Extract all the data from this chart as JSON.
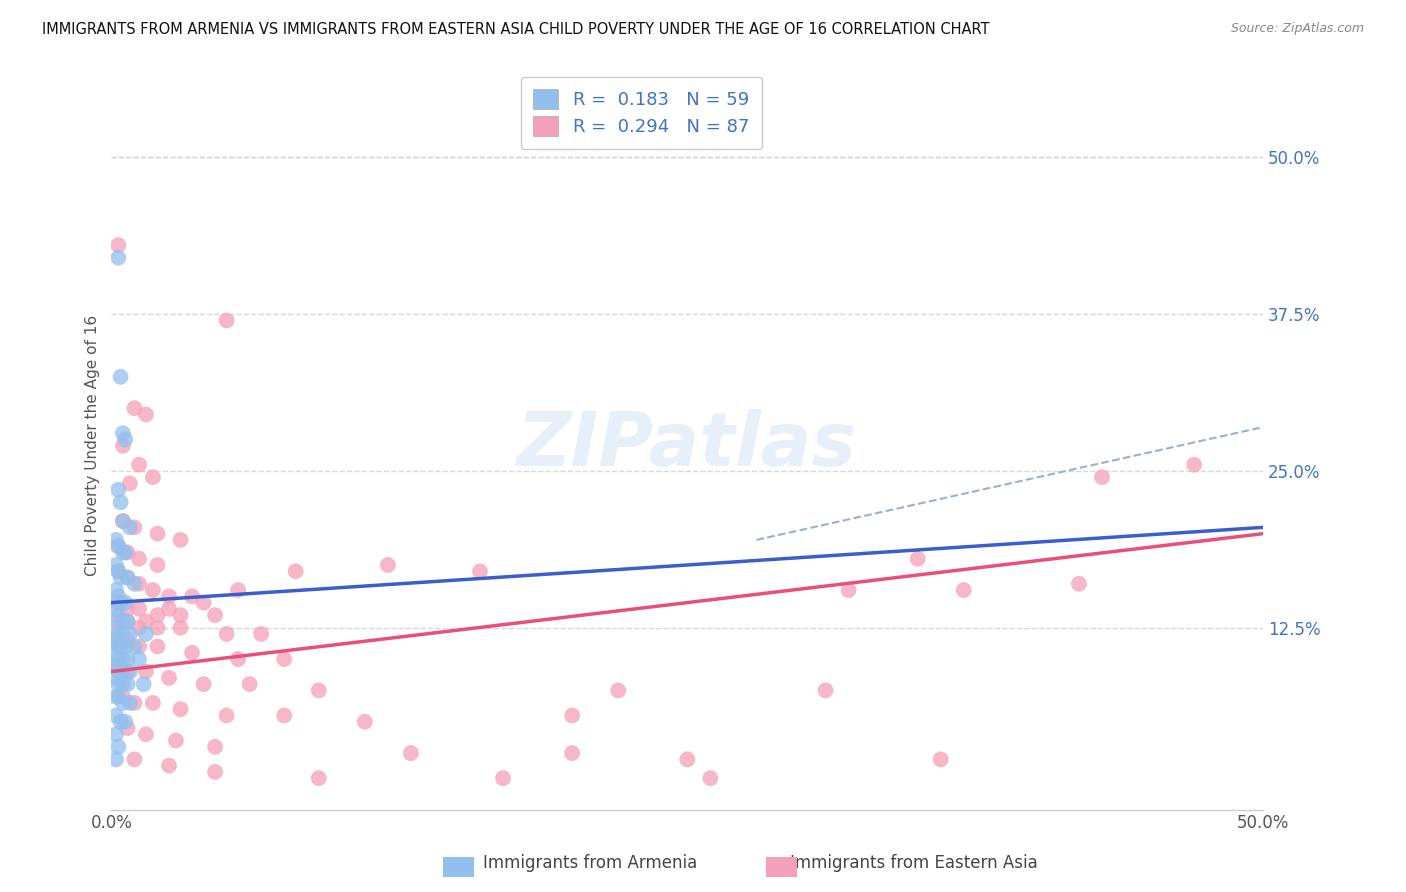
{
  "title": "IMMIGRANTS FROM ARMENIA VS IMMIGRANTS FROM EASTERN ASIA CHILD POVERTY UNDER THE AGE OF 16 CORRELATION CHART",
  "source": "Source: ZipAtlas.com",
  "ylabel": "Child Poverty Under the Age of 16",
  "xlim": [
    0.0,
    0.5
  ],
  "ylim": [
    -0.02,
    0.56
  ],
  "yticks": [
    0.125,
    0.25,
    0.375,
    0.5
  ],
  "ytick_labels": [
    "12.5%",
    "25.0%",
    "37.5%",
    "50.0%"
  ],
  "armenia_color": "#92bfed",
  "eastern_asia_color": "#f4a0b8",
  "armenia_line_color": "#3a5fcd",
  "eastern_asia_line_color": "#e8507a",
  "dash_line_color": "#9ab0d0",
  "background_color": "#ffffff",
  "grid_color": "#d8d8d8",
  "armenia_scatter": [
    [
      0.003,
      0.42
    ],
    [
      0.004,
      0.325
    ],
    [
      0.005,
      0.28
    ],
    [
      0.006,
      0.275
    ],
    [
      0.003,
      0.235
    ],
    [
      0.004,
      0.225
    ],
    [
      0.005,
      0.21
    ],
    [
      0.008,
      0.205
    ],
    [
      0.002,
      0.195
    ],
    [
      0.003,
      0.19
    ],
    [
      0.005,
      0.185
    ],
    [
      0.006,
      0.185
    ],
    [
      0.002,
      0.175
    ],
    [
      0.003,
      0.17
    ],
    [
      0.004,
      0.165
    ],
    [
      0.007,
      0.165
    ],
    [
      0.01,
      0.16
    ],
    [
      0.002,
      0.155
    ],
    [
      0.003,
      0.15
    ],
    [
      0.004,
      0.145
    ],
    [
      0.006,
      0.145
    ],
    [
      0.002,
      0.14
    ],
    [
      0.003,
      0.135
    ],
    [
      0.005,
      0.13
    ],
    [
      0.007,
      0.13
    ],
    [
      0.002,
      0.125
    ],
    [
      0.003,
      0.12
    ],
    [
      0.005,
      0.12
    ],
    [
      0.008,
      0.12
    ],
    [
      0.015,
      0.12
    ],
    [
      0.002,
      0.115
    ],
    [
      0.003,
      0.11
    ],
    [
      0.004,
      0.11
    ],
    [
      0.006,
      0.11
    ],
    [
      0.01,
      0.11
    ],
    [
      0.002,
      0.105
    ],
    [
      0.003,
      0.1
    ],
    [
      0.005,
      0.1
    ],
    [
      0.007,
      0.1
    ],
    [
      0.012,
      0.1
    ],
    [
      0.002,
      0.095
    ],
    [
      0.003,
      0.09
    ],
    [
      0.005,
      0.09
    ],
    [
      0.008,
      0.09
    ],
    [
      0.002,
      0.085
    ],
    [
      0.003,
      0.08
    ],
    [
      0.005,
      0.08
    ],
    [
      0.007,
      0.08
    ],
    [
      0.014,
      0.08
    ],
    [
      0.002,
      0.07
    ],
    [
      0.003,
      0.07
    ],
    [
      0.005,
      0.065
    ],
    [
      0.008,
      0.065
    ],
    [
      0.002,
      0.055
    ],
    [
      0.004,
      0.05
    ],
    [
      0.006,
      0.05
    ],
    [
      0.002,
      0.04
    ],
    [
      0.003,
      0.03
    ],
    [
      0.002,
      0.02
    ]
  ],
  "eastern_asia_scatter": [
    [
      0.003,
      0.43
    ],
    [
      0.05,
      0.37
    ],
    [
      0.01,
      0.3
    ],
    [
      0.015,
      0.295
    ],
    [
      0.005,
      0.27
    ],
    [
      0.012,
      0.255
    ],
    [
      0.018,
      0.245
    ],
    [
      0.008,
      0.24
    ],
    [
      0.005,
      0.21
    ],
    [
      0.01,
      0.205
    ],
    [
      0.02,
      0.2
    ],
    [
      0.03,
      0.195
    ],
    [
      0.003,
      0.19
    ],
    [
      0.007,
      0.185
    ],
    [
      0.012,
      0.18
    ],
    [
      0.02,
      0.175
    ],
    [
      0.003,
      0.17
    ],
    [
      0.007,
      0.165
    ],
    [
      0.012,
      0.16
    ],
    [
      0.018,
      0.155
    ],
    [
      0.025,
      0.15
    ],
    [
      0.035,
      0.15
    ],
    [
      0.003,
      0.145
    ],
    [
      0.007,
      0.14
    ],
    [
      0.012,
      0.14
    ],
    [
      0.02,
      0.135
    ],
    [
      0.03,
      0.135
    ],
    [
      0.045,
      0.135
    ],
    [
      0.003,
      0.13
    ],
    [
      0.007,
      0.13
    ],
    [
      0.012,
      0.125
    ],
    [
      0.02,
      0.125
    ],
    [
      0.03,
      0.125
    ],
    [
      0.05,
      0.12
    ],
    [
      0.065,
      0.12
    ],
    [
      0.003,
      0.115
    ],
    [
      0.007,
      0.115
    ],
    [
      0.012,
      0.11
    ],
    [
      0.02,
      0.11
    ],
    [
      0.035,
      0.105
    ],
    [
      0.055,
      0.1
    ],
    [
      0.075,
      0.1
    ],
    [
      0.003,
      0.095
    ],
    [
      0.007,
      0.09
    ],
    [
      0.015,
      0.09
    ],
    [
      0.025,
      0.085
    ],
    [
      0.04,
      0.08
    ],
    [
      0.06,
      0.08
    ],
    [
      0.09,
      0.075
    ],
    [
      0.005,
      0.07
    ],
    [
      0.01,
      0.065
    ],
    [
      0.018,
      0.065
    ],
    [
      0.03,
      0.06
    ],
    [
      0.05,
      0.055
    ],
    [
      0.075,
      0.055
    ],
    [
      0.11,
      0.05
    ],
    [
      0.007,
      0.045
    ],
    [
      0.015,
      0.04
    ],
    [
      0.028,
      0.035
    ],
    [
      0.045,
      0.03
    ],
    [
      0.13,
      0.025
    ],
    [
      0.2,
      0.025
    ],
    [
      0.01,
      0.02
    ],
    [
      0.025,
      0.015
    ],
    [
      0.045,
      0.01
    ],
    [
      0.09,
      0.005
    ],
    [
      0.17,
      0.005
    ],
    [
      0.26,
      0.005
    ],
    [
      0.22,
      0.075
    ],
    [
      0.31,
      0.075
    ],
    [
      0.25,
      0.02
    ],
    [
      0.32,
      0.155
    ],
    [
      0.37,
      0.155
    ],
    [
      0.36,
      0.02
    ],
    [
      0.42,
      0.16
    ],
    [
      0.47,
      0.255
    ],
    [
      0.16,
      0.17
    ],
    [
      0.12,
      0.175
    ],
    [
      0.08,
      0.17
    ],
    [
      0.055,
      0.155
    ],
    [
      0.04,
      0.145
    ],
    [
      0.025,
      0.14
    ],
    [
      0.015,
      0.13
    ],
    [
      0.2,
      0.055
    ],
    [
      0.43,
      0.245
    ],
    [
      0.35,
      0.18
    ]
  ],
  "armenia_line": [
    0.0,
    0.5,
    0.145,
    0.205
  ],
  "eastern_asia_line": [
    0.0,
    0.5,
    0.09,
    0.2
  ],
  "dash_line": [
    0.28,
    0.5,
    0.195,
    0.285
  ]
}
